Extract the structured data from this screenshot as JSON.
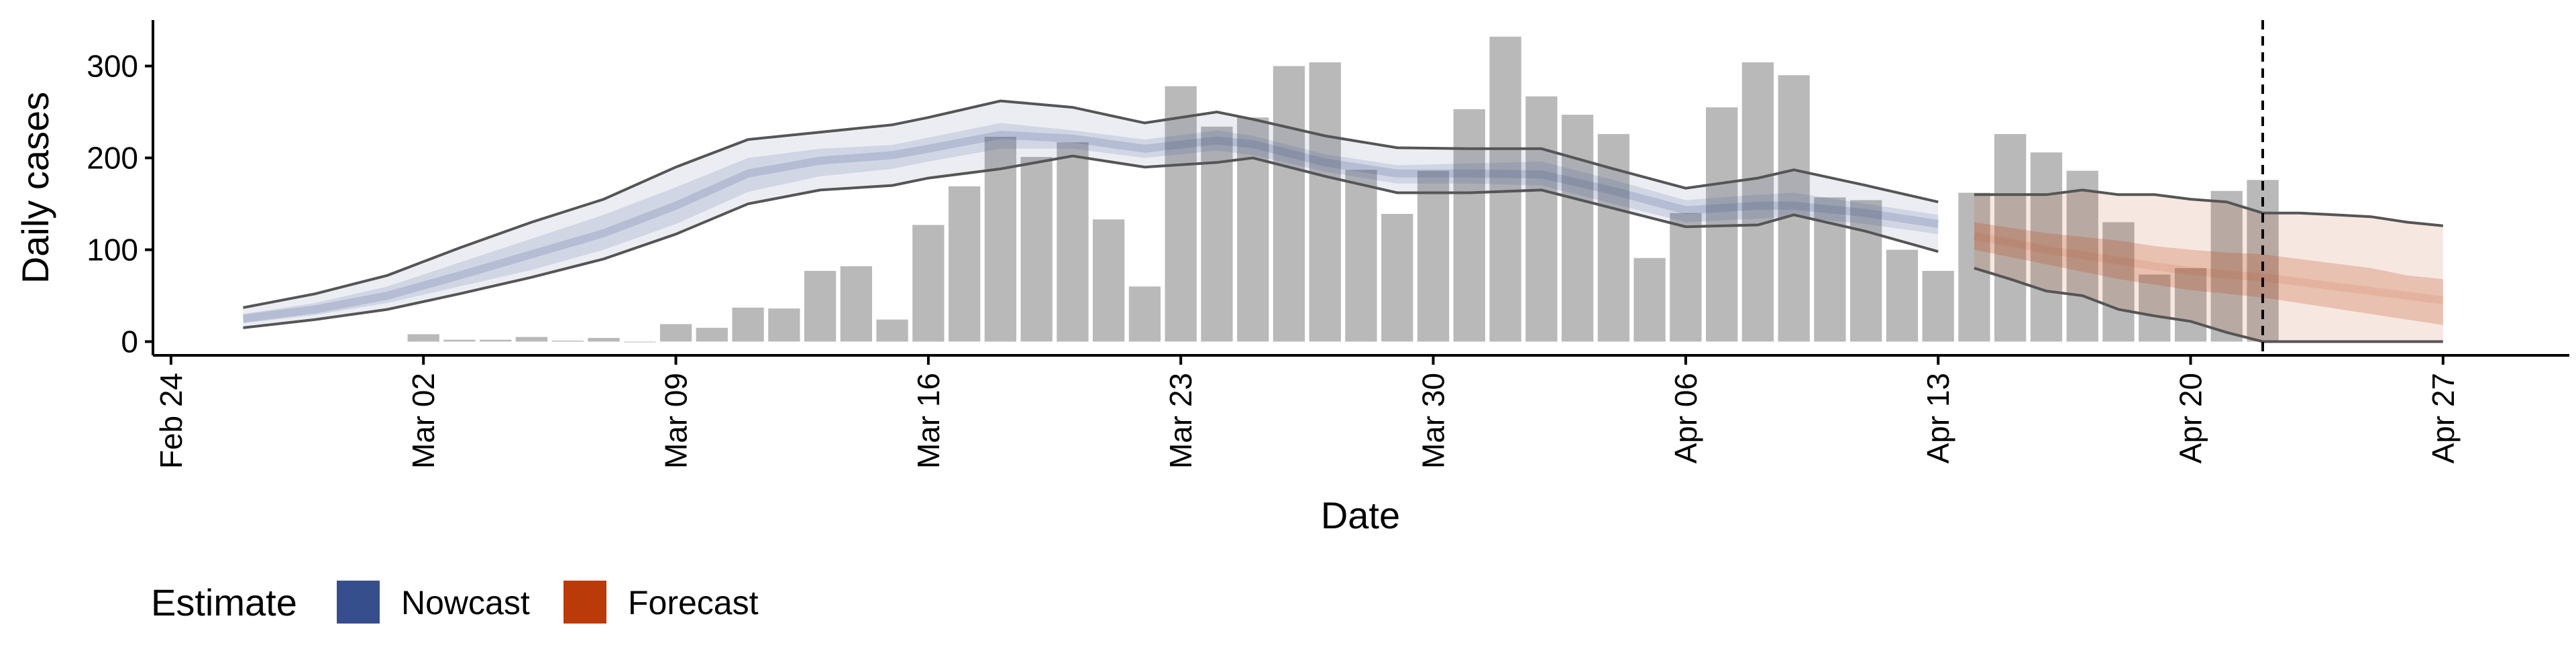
{
  "chart_data": {
    "type": "bar",
    "xlabel": "Date",
    "ylabel": "Daily cases",
    "ylim": [
      -15,
      350
    ],
    "yticks": [
      0,
      100,
      200,
      300
    ],
    "x_range": [
      "2020-02-24",
      "2020-04-30"
    ],
    "x_ticks": [
      "2020-02-24",
      "2020-03-02",
      "2020-03-09",
      "2020-03-16",
      "2020-03-23",
      "2020-03-30",
      "2020-04-06",
      "2020-04-13",
      "2020-04-20",
      "2020-04-27"
    ],
    "x_tick_labels": [
      "Feb 24",
      "Mar 02",
      "Mar 09",
      "Mar 16",
      "Mar 23",
      "Mar 30",
      "Apr 06",
      "Apr 13",
      "Apr 20",
      "Apr 27"
    ],
    "grid": false,
    "vline_date": "2020-04-22",
    "bars": {
      "dates": [
        "2020-03-02",
        "2020-03-03",
        "2020-03-04",
        "2020-03-05",
        "2020-03-06",
        "2020-03-07",
        "2020-03-08",
        "2020-03-09",
        "2020-03-10",
        "2020-03-11",
        "2020-03-12",
        "2020-03-13",
        "2020-03-14",
        "2020-03-15",
        "2020-03-16",
        "2020-03-17",
        "2020-03-18",
        "2020-03-19",
        "2020-03-20",
        "2020-03-21",
        "2020-03-22",
        "2020-03-23",
        "2020-03-24",
        "2020-03-25",
        "2020-03-26",
        "2020-03-27",
        "2020-03-28",
        "2020-03-29",
        "2020-03-30",
        "2020-03-31",
        "2020-04-01",
        "2020-04-02",
        "2020-04-03",
        "2020-04-04",
        "2020-04-05",
        "2020-04-06",
        "2020-04-07",
        "2020-04-08",
        "2020-04-09",
        "2020-04-10",
        "2020-04-11",
        "2020-04-12",
        "2020-04-13",
        "2020-04-14",
        "2020-04-15",
        "2020-04-16",
        "2020-04-17",
        "2020-04-18",
        "2020-04-19",
        "2020-04-20",
        "2020-04-21",
        "2020-04-22"
      ],
      "values": [
        8,
        2,
        2,
        5,
        1,
        4,
        0,
        19,
        15,
        37,
        36,
        77,
        82,
        24,
        127,
        169,
        223,
        201,
        217,
        133,
        60,
        278,
        234,
        244,
        300,
        304,
        187,
        139,
        186,
        253,
        332,
        267,
        247,
        226,
        91,
        140,
        255,
        304,
        290,
        157,
        154,
        100,
        77,
        162,
        226,
        206,
        186,
        130,
        73,
        80,
        164,
        176
      ]
    },
    "series": [
      {
        "name": "Nowcast",
        "color": "#374E8C",
        "dates": [
          "2020-02-26",
          "2020-02-28",
          "2020-03-01",
          "2020-03-03",
          "2020-03-05",
          "2020-03-07",
          "2020-03-09",
          "2020-03-11",
          "2020-03-13",
          "2020-03-15",
          "2020-03-16",
          "2020-03-18",
          "2020-03-20",
          "2020-03-22",
          "2020-03-24",
          "2020-03-25",
          "2020-03-27",
          "2020-03-29",
          "2020-03-31",
          "2020-04-02",
          "2020-04-04",
          "2020-04-06",
          "2020-04-08",
          "2020-04-09",
          "2020-04-11",
          "2020-04-13"
        ],
        "upper": [
          37,
          52,
          72,
          102,
          130,
          155,
          190,
          220,
          228,
          236,
          244,
          262,
          255,
          238,
          250,
          242,
          224,
          211,
          210,
          210,
          188,
          167,
          178,
          187,
          170,
          152
        ],
        "upper_mid": [
          30,
          42,
          60,
          86,
          112,
          138,
          168,
          200,
          210,
          214,
          222,
          238,
          230,
          220,
          230,
          224,
          204,
          192,
          194,
          196,
          176,
          154,
          160,
          162,
          150,
          138
        ],
        "mid": [
          25,
          35,
          50,
          72,
          95,
          118,
          148,
          183,
          197,
          203,
          210,
          225,
          221,
          210,
          219,
          215,
          195,
          183,
          183,
          182,
          164,
          143,
          148,
          148,
          140,
          128
        ],
        "lower_mid": [
          20,
          29,
          42,
          60,
          78,
          100,
          128,
          163,
          180,
          188,
          196,
          210,
          210,
          200,
          208,
          203,
          185,
          172,
          172,
          170,
          150,
          130,
          134,
          136,
          128,
          117
        ],
        "lower": [
          15,
          24,
          35,
          52,
          70,
          90,
          117,
          150,
          165,
          170,
          178,
          188,
          202,
          190,
          195,
          200,
          180,
          162,
          162,
          165,
          145,
          125,
          127,
          138,
          120,
          98
        ]
      },
      {
        "name": "Forecast",
        "color": "#BB3A0A",
        "dates": [
          "2020-04-14",
          "2020-04-15",
          "2020-04-16",
          "2020-04-17",
          "2020-04-18",
          "2020-04-19",
          "2020-04-20",
          "2020-04-21",
          "2020-04-22",
          "2020-04-23",
          "2020-04-24",
          "2020-04-25",
          "2020-04-26",
          "2020-04-27"
        ],
        "upper": [
          160,
          160,
          160,
          165,
          160,
          160,
          155,
          152,
          140,
          140,
          138,
          136,
          130,
          126
        ],
        "upper_mid": [
          130,
          124,
          118,
          114,
          110,
          104,
          100,
          97,
          95,
          90,
          85,
          80,
          72,
          68
        ],
        "mid": [
          115,
          108,
          100,
          94,
          88,
          82,
          77,
          73,
          70,
          65,
          60,
          55,
          50,
          45
        ],
        "lower_mid": [
          100,
          92,
          84,
          76,
          68,
          62,
          56,
          52,
          48,
          42,
          36,
          30,
          24,
          18
        ],
        "lower": [
          80,
          68,
          55,
          50,
          35,
          28,
          22,
          10,
          0,
          0,
          0,
          0,
          0,
          0
        ]
      }
    ],
    "legend": {
      "title": "Estimate",
      "items": [
        {
          "label": "Nowcast",
          "color": "#374E8C"
        },
        {
          "label": "Forecast",
          "color": "#BB3A0A"
        }
      ],
      "position": "bottom-left"
    }
  }
}
